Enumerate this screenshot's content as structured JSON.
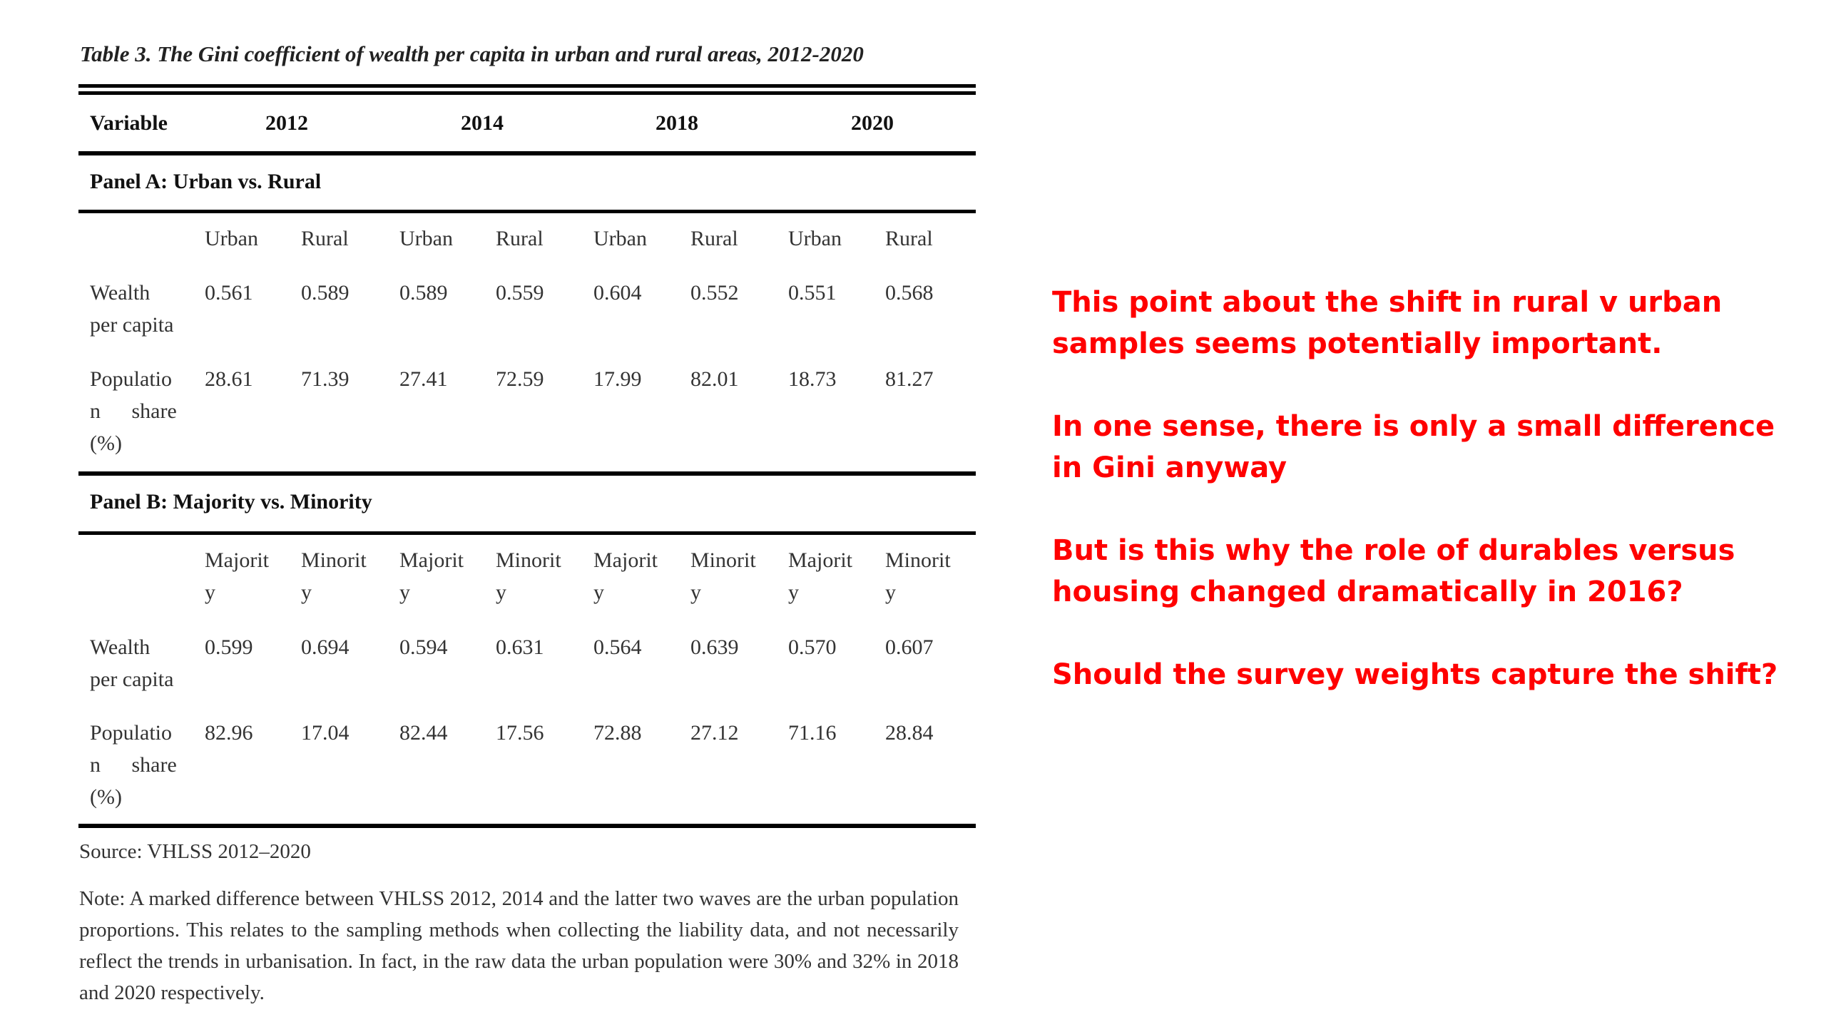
{
  "caption": "Table 3. The Gini coefficient of wealth per capita in urban and rural areas, 2012-2020",
  "header": {
    "variable": "Variable",
    "years": [
      "2012",
      "2014",
      "2018",
      "2020"
    ]
  },
  "panel_a": {
    "title": "Panel A: Urban vs. Rural",
    "subheaders": [
      "Urban",
      "Rural",
      "Urban",
      "Rural",
      "Urban",
      "Rural",
      "Urban",
      "Rural"
    ],
    "rows": [
      {
        "label_line1": "Wealth",
        "label_line2": "per capita",
        "label_line3": "",
        "values": [
          "0.561",
          "0.589",
          "0.589",
          "0.559",
          "0.604",
          "0.552",
          "0.551",
          "0.568"
        ]
      },
      {
        "label_line1": "Populatio",
        "label_line2": "n share",
        "label_line3": "(%)",
        "values": [
          "28.61",
          "71.39",
          "27.41",
          "72.59",
          "17.99",
          "82.01",
          "18.73",
          "81.27"
        ]
      }
    ]
  },
  "panel_b": {
    "title": "Panel B: Majority vs. Minority",
    "subheaders_line1": [
      "Majorit",
      "Minorit",
      "Majorit",
      "Minorit",
      "Majorit",
      "Minorit",
      "Majorit",
      "Minorit"
    ],
    "subheaders_line2": [
      "y",
      "y",
      "y",
      "y",
      "y",
      "y",
      "y",
      "y"
    ],
    "rows": [
      {
        "label_line1": "Wealth",
        "label_line2": "per capita",
        "label_line3": "",
        "values": [
          "0.599",
          "0.694",
          "0.594",
          "0.631",
          "0.564",
          "0.639",
          "0.570",
          "0.607"
        ]
      },
      {
        "label_line1": "Populatio",
        "label_line2": "n share",
        "label_line3": "(%)",
        "values": [
          "82.96",
          "17.04",
          "82.44",
          "17.56",
          "72.88",
          "27.12",
          "71.16",
          "28.84"
        ]
      }
    ]
  },
  "source": "Source: VHLSS 2012–2020",
  "note": "Note: A marked difference between VHLSS 2012, 2014 and the latter two waves are the urban population proportions. This relates to the sampling methods when collecting the liability data, and not necessarily reflect the trends in urbanisation. In fact, in the raw data the urban population were 30% and 32% in 2018 and 2020 respectively.",
  "comments": [
    "This point about the shift in rural v urban samples seems potentially important.",
    "In one sense, there is only a small difference in Gini anyway",
    "But is this why the role of durables versus housing changed dramatically in 2016?",
    "Should the survey weights capture the shift?"
  ],
  "colors": {
    "comment_text": "#ff0000",
    "table_text": "#333333"
  }
}
